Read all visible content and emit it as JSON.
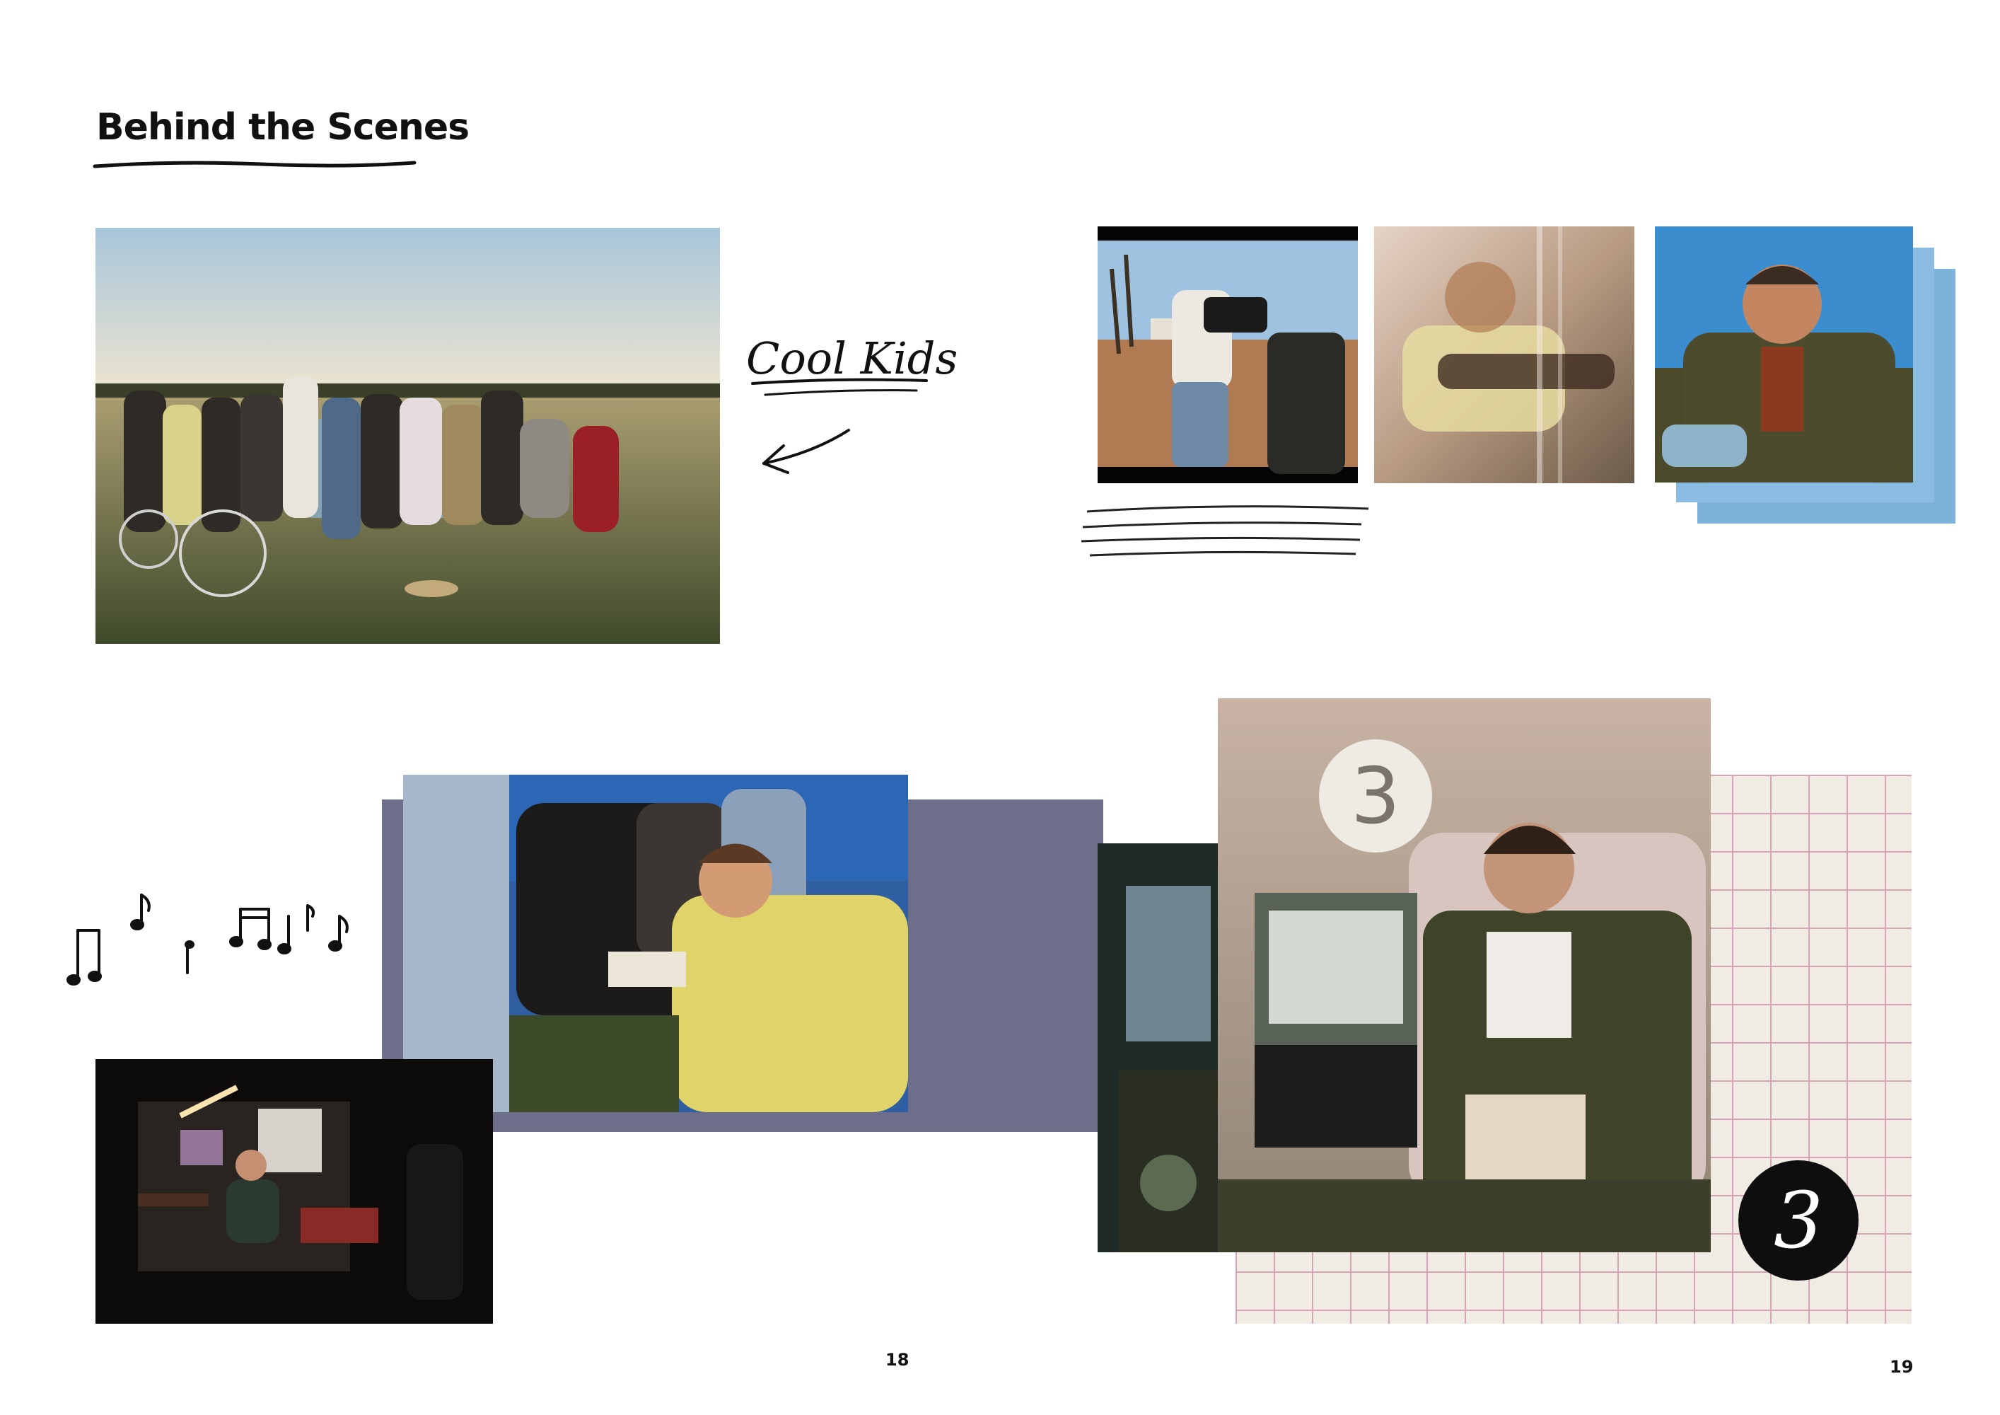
{
  "spread": {
    "heading": "Behind the Scenes",
    "annotation": "Cool Kids",
    "badge_number": "3",
    "sign_number": "3",
    "page_left": "18",
    "page_right": "19"
  },
  "photos": [
    {
      "id": "cast-group",
      "subject": "cast and crew group photo at sunset"
    },
    {
      "id": "camera-operator",
      "subject": "camera operator filming"
    },
    {
      "id": "guitar-blur",
      "subject": "blurred guitarist"
    },
    {
      "id": "bearded-actor",
      "subject": "bearded actor in sunlight"
    },
    {
      "id": "crew-laughing",
      "subject": "crew laughing around camera"
    },
    {
      "id": "night-guitar",
      "subject": "guitarist lit indoors at night"
    },
    {
      "id": "car-interior",
      "subject": "van interior"
    },
    {
      "id": "young-actor",
      "subject": "young actor in floral armchair"
    }
  ],
  "colors": {
    "ink": "#111111",
    "grid_paper": "#f1ece3",
    "grid_line": "#d9a2b7"
  }
}
